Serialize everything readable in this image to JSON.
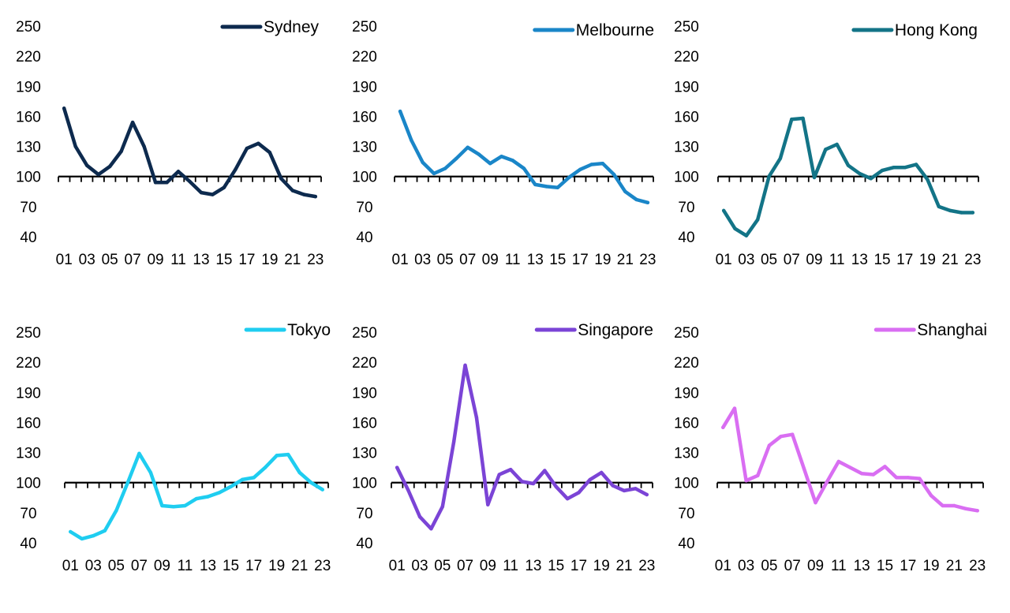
{
  "chart_data": [
    {
      "type": "line",
      "series": [
        {
          "name": "Sydney",
          "color": "#0d2a4e",
          "values": [
            168,
            130,
            111,
            102,
            110,
            125,
            154,
            130,
            94,
            94,
            105,
            95,
            84,
            82,
            89,
            107,
            128,
            133,
            124,
            98,
            86,
            82,
            80
          ]
        }
      ],
      "categories": [
        "01",
        "02",
        "03",
        "04",
        "05",
        "06",
        "07",
        "08",
        "09",
        "10",
        "11",
        "12",
        "13",
        "14",
        "15",
        "16",
        "17",
        "18",
        "19",
        "20",
        "21",
        "22",
        "23"
      ],
      "x_tick_labels": [
        "01",
        "03",
        "05",
        "07",
        "09",
        "11",
        "13",
        "15",
        "17",
        "19",
        "21",
        "23"
      ],
      "y_tick_labels": [
        "250",
        "220",
        "190",
        "160",
        "130",
        "100",
        "70",
        "40"
      ],
      "ylim": [
        40,
        250
      ],
      "baseline": 100,
      "legend": "top-right"
    },
    {
      "type": "line",
      "series": [
        {
          "name": "Melbourne",
          "color": "#1a86c8",
          "values": [
            165,
            136,
            114,
            103,
            108,
            118,
            129,
            122,
            113,
            120,
            116,
            108,
            92,
            90,
            89,
            99,
            107,
            112,
            113,
            102,
            85,
            77,
            74
          ]
        }
      ],
      "categories": [
        "01",
        "02",
        "03",
        "04",
        "05",
        "06",
        "07",
        "08",
        "09",
        "10",
        "11",
        "12",
        "13",
        "14",
        "15",
        "16",
        "17",
        "18",
        "19",
        "20",
        "21",
        "22",
        "23"
      ],
      "x_tick_labels": [
        "01",
        "03",
        "05",
        "07",
        "09",
        "11",
        "13",
        "15",
        "17",
        "19",
        "21",
        "23"
      ],
      "y_tick_labels": [
        "250",
        "220",
        "190",
        "160",
        "130",
        "100",
        "70",
        "40"
      ],
      "ylim": [
        40,
        250
      ],
      "baseline": 100,
      "legend": "top-right"
    },
    {
      "type": "line",
      "series": [
        {
          "name": "Hong Kong",
          "color": "#137487",
          "values": [
            66,
            48,
            41,
            57,
            100,
            118,
            157,
            158,
            99,
            127,
            132,
            111,
            103,
            98,
            106,
            109,
            109,
            112,
            97,
            70,
            66,
            64,
            64
          ]
        }
      ],
      "categories": [
        "01",
        "02",
        "03",
        "04",
        "05",
        "06",
        "07",
        "08",
        "09",
        "10",
        "11",
        "12",
        "13",
        "14",
        "15",
        "16",
        "17",
        "18",
        "19",
        "20",
        "21",
        "22",
        "23"
      ],
      "x_tick_labels": [
        "01",
        "03",
        "05",
        "07",
        "09",
        "11",
        "13",
        "15",
        "17",
        "19",
        "21",
        "23"
      ],
      "y_tick_labels": [
        "250",
        "220",
        "190",
        "160",
        "130",
        "100",
        "70",
        "40"
      ],
      "ylim": [
        40,
        250
      ],
      "baseline": 100,
      "legend": "top-right"
    },
    {
      "type": "line",
      "series": [
        {
          "name": "Tokyo",
          "color": "#1fcdf0",
          "values": [
            51,
            44,
            47,
            52,
            72,
            100,
            129,
            110,
            77,
            76,
            77,
            84,
            86,
            90,
            96,
            103,
            105,
            115,
            127,
            128,
            110,
            100,
            93
          ]
        }
      ],
      "categories": [
        "01",
        "02",
        "03",
        "04",
        "05",
        "06",
        "07",
        "08",
        "09",
        "10",
        "11",
        "12",
        "13",
        "14",
        "15",
        "16",
        "17",
        "18",
        "19",
        "20",
        "21",
        "22",
        "23"
      ],
      "x_tick_labels": [
        "01",
        "03",
        "05",
        "07",
        "09",
        "11",
        "13",
        "15",
        "17",
        "19",
        "21",
        "23"
      ],
      "y_tick_labels": [
        "250",
        "220",
        "190",
        "160",
        "130",
        "100",
        "70",
        "40"
      ],
      "ylim": [
        40,
        250
      ],
      "baseline": 100,
      "legend": "top-right"
    },
    {
      "type": "line",
      "series": [
        {
          "name": "Singapore",
          "color": "#7b44d6",
          "values": [
            115,
            92,
            66,
            54,
            76,
            141,
            217,
            165,
            78,
            108,
            113,
            101,
            99,
            112,
            96,
            84,
            90,
            103,
            110,
            97,
            92,
            94,
            88
          ]
        }
      ],
      "categories": [
        "01",
        "02",
        "03",
        "04",
        "05",
        "06",
        "07",
        "08",
        "09",
        "10",
        "11",
        "12",
        "13",
        "14",
        "15",
        "16",
        "17",
        "18",
        "19",
        "20",
        "21",
        "22",
        "23"
      ],
      "x_tick_labels": [
        "01",
        "03",
        "05",
        "07",
        "09",
        "11",
        "13",
        "15",
        "17",
        "19",
        "21",
        "23"
      ],
      "y_tick_labels": [
        "250",
        "220",
        "190",
        "160",
        "130",
        "100",
        "70",
        "40"
      ],
      "ylim": [
        40,
        250
      ],
      "baseline": 100,
      "legend": "top-right"
    },
    {
      "type": "line",
      "series": [
        {
          "name": "Shanghai",
          "color": "#d96ef2",
          "values": [
            155,
            174,
            102,
            107,
            137,
            146,
            148,
            114,
            80,
            101,
            121,
            115,
            109,
            108,
            116,
            105,
            105,
            104,
            87,
            77,
            77,
            74,
            72
          ]
        }
      ],
      "categories": [
        "01",
        "02",
        "03",
        "04",
        "05",
        "06",
        "07",
        "08",
        "09",
        "10",
        "11",
        "12",
        "13",
        "14",
        "15",
        "16",
        "17",
        "18",
        "19",
        "20",
        "21",
        "22",
        "23"
      ],
      "x_tick_labels": [
        "01",
        "03",
        "05",
        "07",
        "09",
        "11",
        "13",
        "15",
        "17",
        "19",
        "21",
        "23"
      ],
      "y_tick_labels": [
        "250",
        "220",
        "190",
        "160",
        "130",
        "100",
        "70",
        "40"
      ],
      "ylim": [
        40,
        250
      ],
      "baseline": 100,
      "legend": "top-right"
    }
  ]
}
